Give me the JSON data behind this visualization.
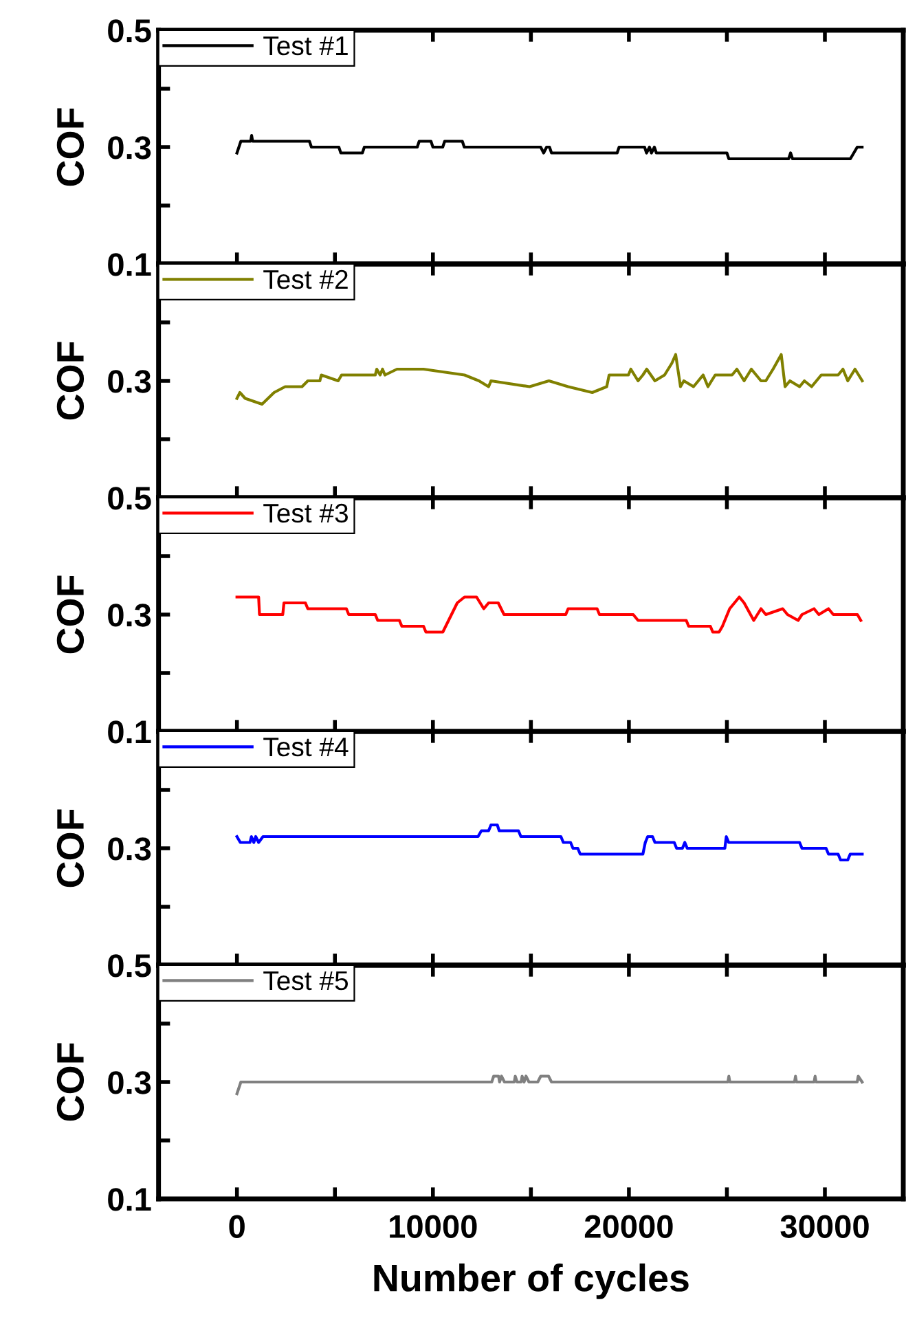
{
  "chart_data": [
    {
      "type": "line",
      "ylabel": "COF",
      "xlim": [
        -4000,
        34000
      ],
      "ylim": [
        0.1,
        0.5
      ],
      "legend": "top left",
      "tick_labels": "y",
      "xticks": [
        {
          "value": 0,
          "label": null
        },
        {
          "value": 5000,
          "label": null
        },
        {
          "value": 10000,
          "label": null
        },
        {
          "value": 15000,
          "label": null
        },
        {
          "value": 20000,
          "label": null
        },
        {
          "value": 25000,
          "label": null
        },
        {
          "value": 30000,
          "label": null
        }
      ],
      "yticks": [
        {
          "value": 0.1,
          "label": null
        },
        {
          "value": 0.2,
          "label": null
        },
        0.3,
        {
          "value": 0.4,
          "label": null
        },
        0.5
      ],
      "series": [
        {
          "name": "Test #1",
          "color": "#000000",
          "x": [
            0,
            200,
            700,
            750,
            800,
            3700,
            3800,
            5200,
            5300,
            6400,
            6500,
            9200,
            9300,
            9900,
            10000,
            10500,
            10600,
            11500,
            11600,
            15500,
            15650,
            15800,
            15950,
            16050,
            19400,
            19500,
            20800,
            20900,
            21050,
            21150,
            21300,
            21400,
            25000,
            25100,
            28150,
            28250,
            28350,
            31300,
            31650,
            31900
          ],
          "values": [
            0.29,
            0.31,
            0.31,
            0.32,
            0.31,
            0.31,
            0.3,
            0.3,
            0.29,
            0.29,
            0.3,
            0.3,
            0.31,
            0.31,
            0.3,
            0.3,
            0.31,
            0.31,
            0.3,
            0.3,
            0.29,
            0.3,
            0.3,
            0.29,
            0.29,
            0.3,
            0.3,
            0.29,
            0.3,
            0.29,
            0.3,
            0.29,
            0.29,
            0.28,
            0.28,
            0.29,
            0.28,
            0.28,
            0.3,
            0.3
          ]
        }
      ]
    },
    {
      "type": "line",
      "ylabel": "COF",
      "xlim": [
        -4000,
        34000
      ],
      "ylim": [
        0.5,
        0.1
      ],
      "legend": "top left",
      "tick_labels": "y",
      "xticks": [
        {
          "value": 0,
          "label": null
        },
        {
          "value": 5000,
          "label": null
        },
        {
          "value": 10000,
          "label": null
        },
        {
          "value": 15000,
          "label": null
        },
        {
          "value": 20000,
          "label": null
        },
        {
          "value": 25000,
          "label": null
        },
        {
          "value": 30000,
          "label": null
        }
      ],
      "yticks": [
        0.1,
        {
          "value": 0.2,
          "label": null
        },
        0.3,
        {
          "value": 0.4,
          "label": null
        },
        0.5
      ],
      "series": [
        {
          "name": "Test #2",
          "color": "#808000",
          "x": [
            0,
            150,
            418,
            1280,
            1894,
            2460,
            3321,
            3616,
            4231,
            4305,
            5166,
            5338,
            7060,
            7134,
            7306,
            7429,
            7552,
            8167,
            9520,
            11611,
            12349,
            12841,
            12964,
            14932,
            15916,
            16900,
            18130,
            18868,
            18991,
            19975,
            20098,
            20467,
            20713,
            20910,
            21328,
            21820,
            22189,
            22386,
            22632,
            22804,
            23296,
            23542,
            23788,
            24034,
            24403,
            25264,
            25510,
            25879,
            26248,
            26740,
            26986,
            27355,
            27773,
            27970,
            28216,
            28708,
            28954,
            29323,
            29815,
            30676,
            30922,
            31168,
            31537,
            31906
          ],
          "values": [
            0.33,
            0.32,
            0.33,
            0.34,
            0.32,
            0.31,
            0.31,
            0.3,
            0.3,
            0.29,
            0.3,
            0.29,
            0.29,
            0.28,
            0.29,
            0.28,
            0.29,
            0.28,
            0.28,
            0.29,
            0.3,
            0.31,
            0.3,
            0.31,
            0.3,
            0.31,
            0.32,
            0.31,
            0.29,
            0.29,
            0.28,
            0.3,
            0.29,
            0.28,
            0.3,
            0.29,
            0.27,
            0.255,
            0.31,
            0.3,
            0.31,
            0.3,
            0.29,
            0.31,
            0.29,
            0.29,
            0.28,
            0.3,
            0.28,
            0.3,
            0.3,
            0.28,
            0.255,
            0.31,
            0.3,
            0.31,
            0.3,
            0.31,
            0.29,
            0.29,
            0.28,
            0.3,
            0.28,
            0.3
          ]
        }
      ]
    },
    {
      "type": "line",
      "ylabel": "COF",
      "xlim": [
        -4000,
        34000
      ],
      "ylim": [
        0.1,
        0.5
      ],
      "legend": "top left",
      "tick_labels": "y",
      "xticks": [
        {
          "value": 0,
          "label": null
        },
        {
          "value": 5000,
          "label": null
        },
        {
          "value": 10000,
          "label": null
        },
        {
          "value": 15000,
          "label": null
        },
        {
          "value": 20000,
          "label": null
        },
        {
          "value": 25000,
          "label": null
        },
        {
          "value": 30000,
          "label": null
        }
      ],
      "yticks": [
        0.1,
        {
          "value": 0.2,
          "label": null
        },
        0.3,
        {
          "value": 0.4,
          "label": null
        },
        {
          "value": 0.5,
          "label": null
        }
      ],
      "series": [
        {
          "name": "Test #3",
          "color": "#ff0000",
          "x": [
            0,
            1107,
            1150,
            2337,
            2400,
            3493,
            3616,
            3739,
            5584,
            5707,
            7060,
            7183,
            8290,
            8413,
            9520,
            9643,
            10504,
            11242,
            11611,
            12226,
            12595,
            12841,
            13333,
            13628,
            16777,
            16900,
            18376,
            18499,
            20221,
            20467,
            20590,
            22927,
            23050,
            24157,
            24280,
            24600,
            24772,
            25141,
            25633,
            25879,
            26371,
            26740,
            26986,
            27847,
            28093,
            28634,
            28831,
            29446,
            29692,
            30184,
            30430,
            31660,
            31832
          ],
          "values": [
            0.33,
            0.33,
            0.3,
            0.3,
            0.32,
            0.32,
            0.31,
            0.31,
            0.31,
            0.3,
            0.3,
            0.29,
            0.29,
            0.28,
            0.28,
            0.27,
            0.27,
            0.32,
            0.33,
            0.33,
            0.31,
            0.32,
            0.32,
            0.3,
            0.3,
            0.31,
            0.31,
            0.3,
            0.3,
            0.29,
            0.29,
            0.29,
            0.28,
            0.28,
            0.27,
            0.27,
            0.28,
            0.31,
            0.33,
            0.32,
            0.29,
            0.31,
            0.3,
            0.31,
            0.3,
            0.29,
            0.3,
            0.31,
            0.3,
            0.31,
            0.3,
            0.3,
            0.29
          ]
        }
      ]
    },
    {
      "type": "line",
      "ylabel": "COF",
      "xlim": [
        -4000,
        34000
      ],
      "ylim": [
        0.5,
        0.1
      ],
      "legend": "top left",
      "tick_labels": "y",
      "xticks": [
        {
          "value": 0,
          "label": null
        },
        {
          "value": 5000,
          "label": null
        },
        {
          "value": 10000,
          "label": null
        },
        {
          "value": 15000,
          "label": null
        },
        {
          "value": 20000,
          "label": null
        },
        {
          "value": 25000,
          "label": null
        },
        {
          "value": 30000,
          "label": null
        }
      ],
      "yticks": [
        {
          "value": 0.1,
          "label": null
        },
        {
          "value": 0.2,
          "label": null
        },
        0.3,
        {
          "value": 0.4,
          "label": null
        },
        0.5
      ],
      "series": [
        {
          "name": "Test #4",
          "color": "#0000ff",
          "x": [
            0,
            172,
            664,
            738,
            861,
            959,
            1107,
            1328,
            12300,
            12472,
            12841,
            12964,
            13284,
            13382,
            14366,
            14489,
            16531,
            16654,
            17023,
            17146,
            17392,
            17515,
            20713,
            20836,
            20959,
            21205,
            21328,
            22312,
            22435,
            22730,
            22853,
            22976,
            24895,
            24969,
            25092,
            28708,
            28831,
            30061,
            30184,
            30676,
            30799,
            31168,
            31291,
            31906
          ],
          "values": [
            0.28,
            0.29,
            0.29,
            0.28,
            0.29,
            0.28,
            0.29,
            0.28,
            0.28,
            0.27,
            0.27,
            0.26,
            0.26,
            0.27,
            0.27,
            0.28,
            0.28,
            0.29,
            0.29,
            0.3,
            0.3,
            0.31,
            0.31,
            0.29,
            0.28,
            0.28,
            0.29,
            0.29,
            0.3,
            0.3,
            0.29,
            0.3,
            0.3,
            0.28,
            0.29,
            0.29,
            0.3,
            0.3,
            0.31,
            0.31,
            0.32,
            0.32,
            0.31,
            0.31
          ]
        }
      ]
    },
    {
      "type": "line",
      "ylabel": "COF",
      "xlabel": "Number of cycles",
      "xlim": [
        -4000,
        34000
      ],
      "ylim": [
        0.1,
        0.5
      ],
      "legend": "top left",
      "xticks": [
        0,
        {
          "value": 5000,
          "label": null
        },
        10000,
        {
          "value": 15000,
          "label": null
        },
        20000,
        {
          "value": 25000,
          "label": null
        },
        30000
      ],
      "yticks": [
        0.1,
        {
          "value": 0.2,
          "label": null
        },
        0.3,
        {
          "value": 0.4,
          "label": null
        },
        {
          "value": 0.5,
          "label": null
        }
      ],
      "series": [
        {
          "name": "Test #5",
          "color": "#808080",
          "x": [
            0,
            200,
            13000,
            13100,
            13350,
            13400,
            13500,
            13650,
            14150,
            14200,
            14300,
            14500,
            14550,
            14650,
            14750,
            14900,
            15350,
            15500,
            15900,
            16050,
            25050,
            25100,
            25150,
            28450,
            28500,
            28550,
            29450,
            29500,
            29550,
            31650,
            31700,
            31900
          ],
          "values": [
            0.28,
            0.3,
            0.3,
            0.31,
            0.31,
            0.3,
            0.31,
            0.3,
            0.3,
            0.31,
            0.3,
            0.3,
            0.31,
            0.3,
            0.31,
            0.3,
            0.3,
            0.31,
            0.31,
            0.3,
            0.3,
            0.31,
            0.3,
            0.3,
            0.31,
            0.3,
            0.3,
            0.31,
            0.3,
            0.3,
            0.31,
            0.3
          ]
        }
      ]
    }
  ]
}
